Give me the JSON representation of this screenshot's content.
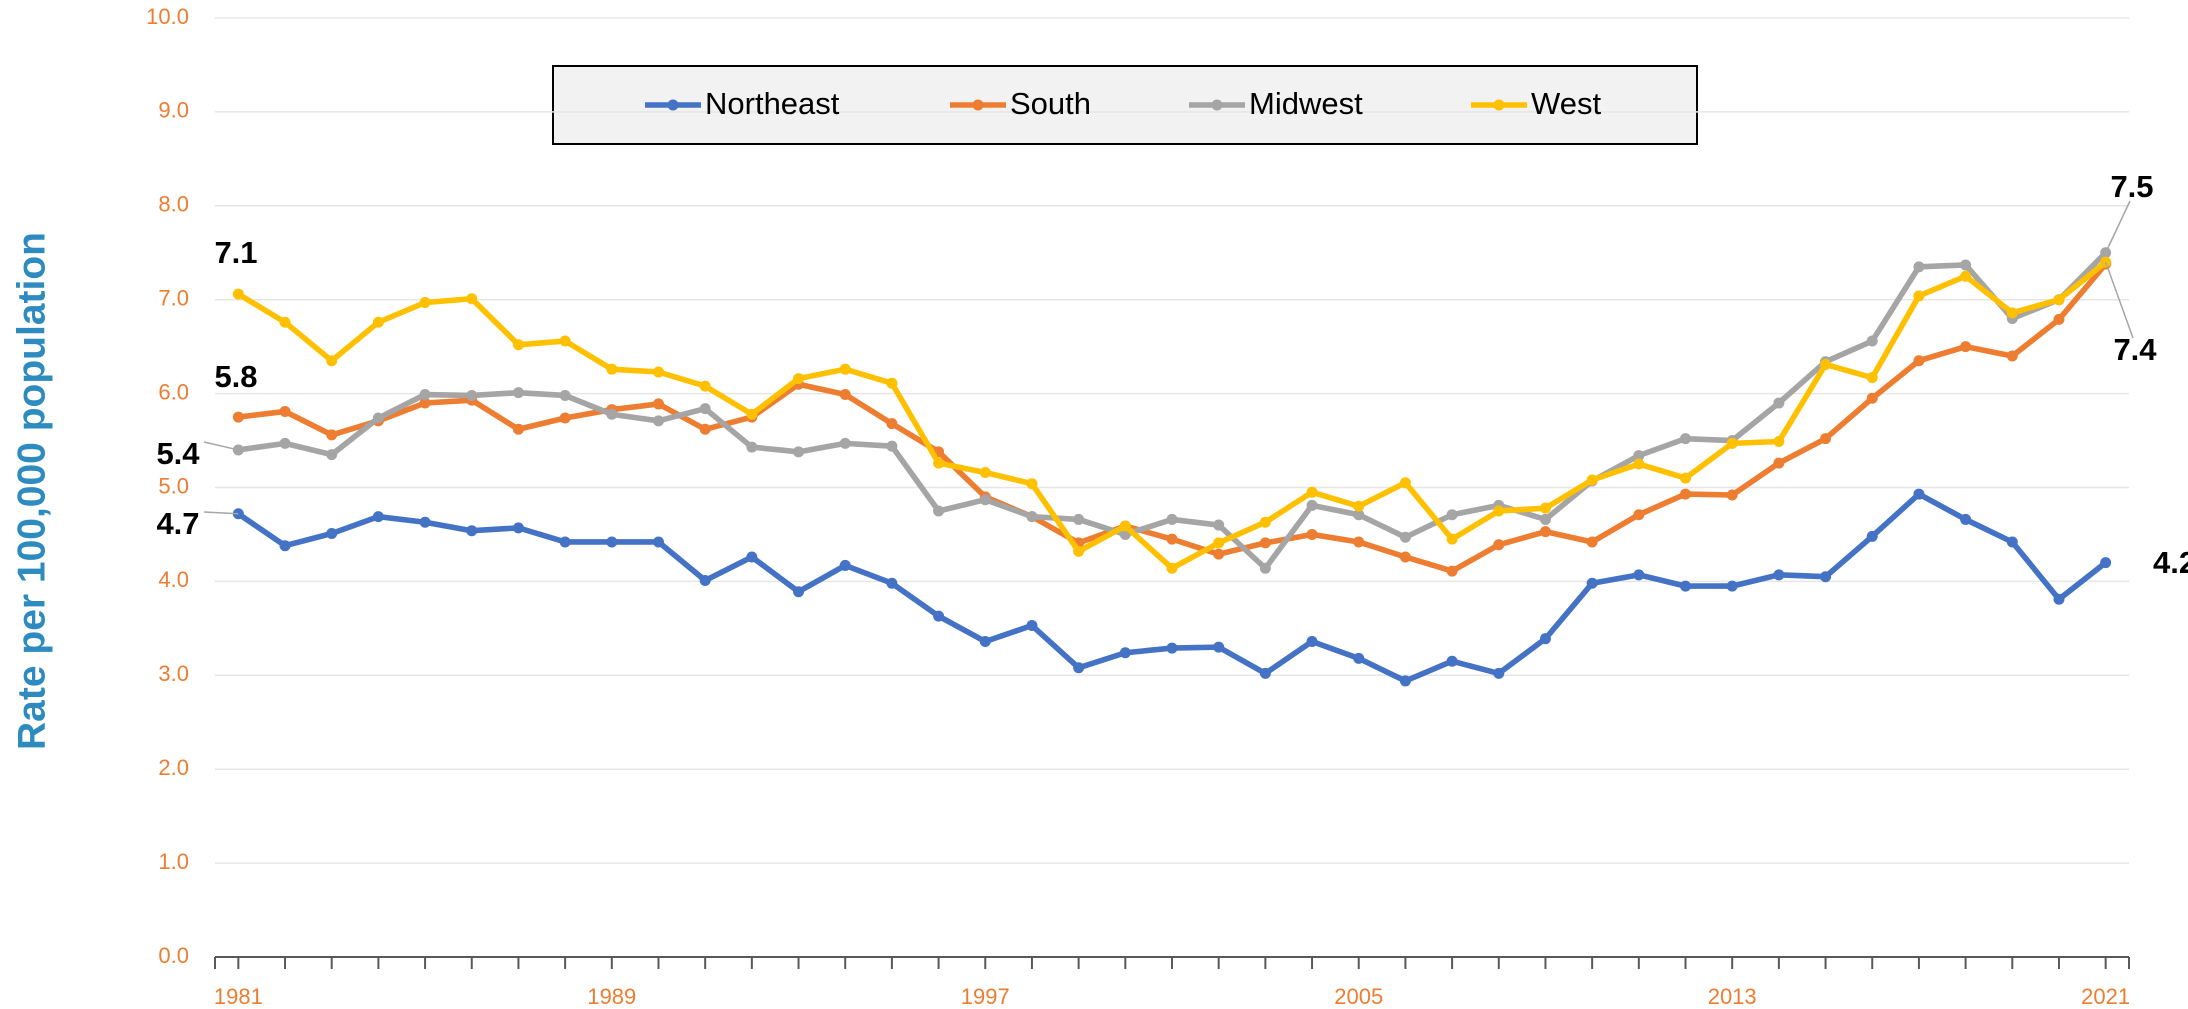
{
  "chart_data": {
    "type": "line",
    "y_label": "Rate per 100,000 population",
    "x": [
      1981,
      1982,
      1983,
      1984,
      1985,
      1986,
      1987,
      1988,
      1989,
      1990,
      1991,
      1992,
      1993,
      1994,
      1995,
      1996,
      1997,
      1998,
      1999,
      2000,
      2001,
      2002,
      2003,
      2004,
      2005,
      2006,
      2007,
      2008,
      2009,
      2010,
      2011,
      2012,
      2013,
      2014,
      2015,
      2016,
      2017,
      2018,
      2019,
      2020,
      2021
    ],
    "xlim": [
      1980.5,
      2021.5
    ],
    "xticks": [
      1981,
      1989,
      1997,
      2005,
      2013,
      2021
    ],
    "ylim": [
      0,
      10
    ],
    "yticks": [
      {
        "value": 0,
        "label": "0.0"
      },
      {
        "value": 1,
        "label": "1.0"
      },
      {
        "value": 2,
        "label": "2.0"
      },
      {
        "value": 3,
        "label": "3.0"
      },
      {
        "value": 4,
        "label": "4.0"
      },
      {
        "value": 5,
        "label": "5.0"
      },
      {
        "value": 6,
        "label": "6.0"
      },
      {
        "value": 7,
        "label": "7.0"
      },
      {
        "value": 8,
        "label": "8.0"
      },
      {
        "value": 9,
        "label": "9.0"
      },
      {
        "value": 10,
        "label": "10.0"
      }
    ],
    "grid": true,
    "legend": "top",
    "series": [
      {
        "name": "Northeast",
        "color": "#4472c4",
        "values": [
          4.72,
          4.38,
          4.51,
          4.69,
          4.63,
          4.54,
          4.57,
          4.42,
          4.42,
          4.42,
          4.01,
          4.26,
          3.89,
          4.17,
          3.98,
          3.63,
          3.36,
          3.53,
          3.08,
          3.24,
          3.29,
          3.3,
          3.02,
          3.36,
          3.18,
          2.94,
          3.15,
          3.02,
          3.39,
          3.98,
          4.07,
          3.95,
          3.95,
          4.07,
          4.05,
          4.48,
          4.93,
          4.66,
          4.42,
          3.81,
          4.2
        ],
        "value_labels": [
          "4.7",
          null,
          null,
          null,
          null,
          null,
          null,
          null,
          null,
          null,
          null,
          null,
          null,
          null,
          null,
          null,
          null,
          null,
          null,
          null,
          null,
          null,
          null,
          null,
          null,
          null,
          null,
          null,
          null,
          null,
          null,
          null,
          null,
          null,
          null,
          null,
          null,
          null,
          null,
          null,
          "4.2"
        ]
      },
      {
        "name": "South",
        "color": "#ed7d31",
        "values": [
          5.75,
          5.81,
          5.56,
          5.71,
          5.9,
          5.93,
          5.62,
          5.74,
          5.83,
          5.89,
          5.62,
          5.75,
          6.1,
          5.99,
          5.68,
          5.38,
          4.9,
          4.69,
          4.41,
          4.59,
          4.45,
          4.29,
          4.41,
          4.5,
          4.42,
          4.26,
          4.11,
          4.39,
          4.53,
          4.42,
          4.71,
          4.93,
          4.92,
          5.26,
          5.52,
          5.95,
          6.35,
          6.5,
          6.4,
          6.79,
          7.38
        ],
        "value_labels": [
          "5.8",
          null,
          null,
          null,
          null,
          null,
          null,
          null,
          null,
          null,
          null,
          null,
          null,
          null,
          null,
          null,
          null,
          null,
          null,
          null,
          null,
          null,
          null,
          null,
          null,
          null,
          null,
          null,
          null,
          null,
          null,
          null,
          null,
          null,
          null,
          null,
          null,
          null,
          null,
          null,
          null
        ]
      },
      {
        "name": "Midwest",
        "color": "#a5a5a5",
        "values": [
          5.4,
          5.47,
          5.35,
          5.74,
          5.99,
          5.98,
          6.01,
          5.98,
          5.78,
          5.71,
          5.84,
          5.43,
          5.38,
          5.47,
          5.44,
          4.75,
          4.87,
          4.69,
          4.66,
          4.5,
          4.66,
          4.6,
          4.14,
          4.81,
          4.71,
          4.47,
          4.71,
          4.81,
          4.66,
          5.07,
          5.34,
          5.52,
          5.5,
          5.9,
          6.34,
          6.56,
          7.35,
          7.37,
          6.8,
          7.0,
          7.5
        ],
        "value_labels": [
          "5.4",
          null,
          null,
          null,
          null,
          null,
          null,
          null,
          null,
          null,
          null,
          null,
          null,
          null,
          null,
          null,
          null,
          null,
          null,
          null,
          null,
          null,
          null,
          null,
          null,
          null,
          null,
          null,
          null,
          null,
          null,
          null,
          null,
          null,
          null,
          null,
          null,
          null,
          null,
          null,
          "7.5"
        ]
      },
      {
        "name": "West",
        "color": "#ffc000",
        "values": [
          7.06,
          6.76,
          6.35,
          6.76,
          6.97,
          7.01,
          6.52,
          6.56,
          6.26,
          6.23,
          6.08,
          5.78,
          6.16,
          6.26,
          6.11,
          5.26,
          5.16,
          5.04,
          4.32,
          4.59,
          4.14,
          4.41,
          4.63,
          4.95,
          4.8,
          5.05,
          4.45,
          4.75,
          4.78,
          5.08,
          5.25,
          5.1,
          5.47,
          5.49,
          6.31,
          6.17,
          7.04,
          7.25,
          6.86,
          7.0,
          7.4
        ],
        "value_labels": [
          "7.1",
          null,
          null,
          null,
          null,
          null,
          null,
          null,
          null,
          null,
          null,
          null,
          null,
          null,
          null,
          null,
          null,
          null,
          null,
          null,
          null,
          null,
          null,
          null,
          null,
          null,
          null,
          null,
          null,
          null,
          null,
          null,
          null,
          null,
          null,
          null,
          null,
          null,
          null,
          null,
          "7.4"
        ]
      }
    ]
  }
}
